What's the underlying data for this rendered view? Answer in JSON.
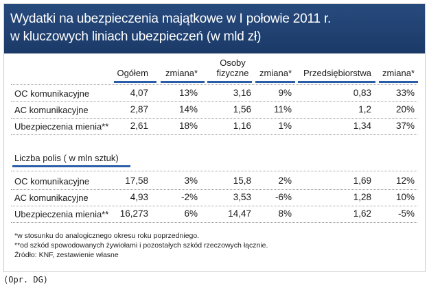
{
  "chart_data": {
    "type": "table",
    "title": "Wydatki na ubezpieczenia majątkowe w I połowie 2011 r.\nw kluczowych liniach ubezpieczeń (w mld zł)",
    "columns": [
      "Ogółem",
      "zmiana*",
      "Osoby fizyczne",
      "zmiana*",
      "Przedsiębiorstwa",
      "zmiana*"
    ],
    "sections": [
      {
        "title": "",
        "rows": [
          {
            "label": "OC komunikacyjne",
            "values": [
              "4,07",
              "13%",
              "3,16",
              "9%",
              "0,83",
              "33%"
            ]
          },
          {
            "label": "AC komunikacyjne",
            "values": [
              "2,87",
              "14%",
              "1,56",
              "11%",
              "1,2",
              "20%"
            ]
          },
          {
            "label": "Ubezpieczenia mienia**",
            "values": [
              "2,61",
              "18%",
              "1,16",
              "1%",
              "1,34",
              "37%"
            ]
          }
        ]
      },
      {
        "title": "Liczba polis ( w mln sztuk)",
        "rows": [
          {
            "label": "OC komunikacyjne",
            "values": [
              "17,58",
              "3%",
              "15,8",
              "2%",
              "1,69",
              "12%"
            ]
          },
          {
            "label": "AC komunikacyjne",
            "values": [
              "4,93",
              "-2%",
              "3,53",
              "-6%",
              "1,28",
              "10%"
            ]
          },
          {
            "label": "Ubezpieczenia mienia**",
            "values": [
              "16,273",
              "6%",
              "14,47",
              "8%",
              "1,62",
              "-5%"
            ]
          }
        ]
      }
    ],
    "notes": [
      "*w stosunku do analogicznego okresu roku poprzedniego.",
      "**od szkód spowodowanych żywiołami i pozostałych szkód rzeczowych łącznie.",
      "Źródło: KNF, zestawienie własne"
    ]
  },
  "credit": "(Opr. DG)"
}
